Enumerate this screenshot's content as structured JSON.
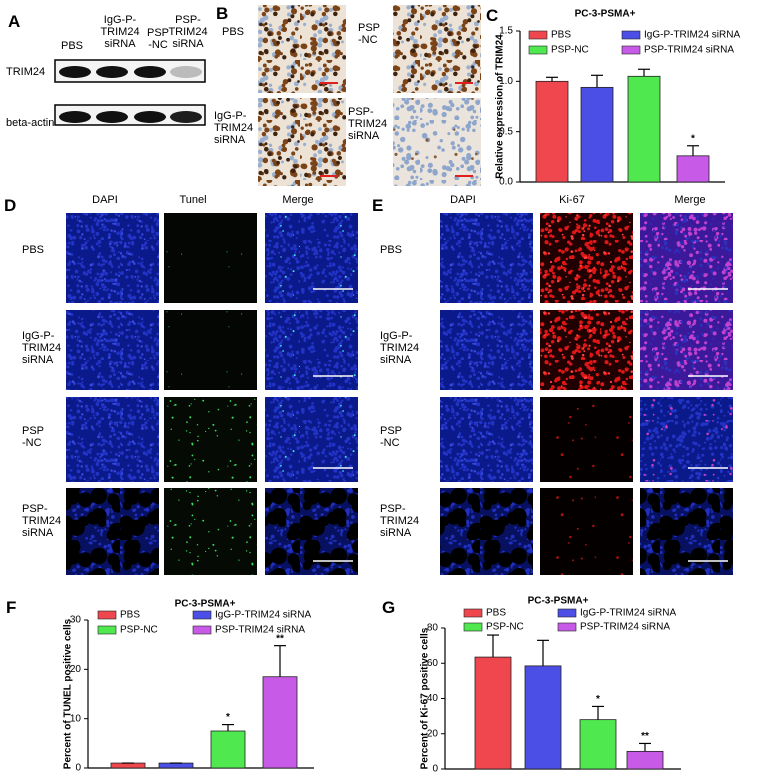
{
  "panel_labels": [
    "A",
    "B",
    "C",
    "D",
    "E",
    "F",
    "G"
  ],
  "blot": {
    "lanes": [
      "PBS",
      "IgG-P-\nTRIM24\nsiRNA",
      "PSP\n-NC",
      "PSP-\nTRIM24\nsiRNA"
    ],
    "rows": [
      "TRIM24",
      "beta-actin"
    ]
  },
  "ihc": {
    "labels": [
      "PBS",
      "PSP\n-NC",
      "IgG-P-\nTRIM24\nsiRNA",
      "PSP-\nTRIM24\nsiRNA"
    ]
  },
  "tunel": {
    "columns": [
      "DAPI",
      "Tunel",
      "Merge"
    ],
    "rows": [
      "PBS",
      "IgG-P-\nTRIM24\nsiRNA",
      "PSP\n-NC",
      "PSP-\nTRIM24\nsiRNA"
    ]
  },
  "ki67": {
    "columns": [
      "DAPI",
      "Ki-67",
      "Merge"
    ],
    "rows": [
      "PBS",
      "IgG-P-\nTRIM24\nsiRNA",
      "PSP\n-NC",
      "PSP-\nTRIM24\nsiRNA"
    ]
  },
  "chart_data": [
    {
      "type": "bar",
      "title": "PC-3-PSMA+",
      "y_label": "Relative expression of TRIM24",
      "ylim": [
        0,
        1.5
      ],
      "yticks": [
        {
          "value": 0,
          "label": "0.0"
        },
        0.5,
        {
          "value": 1,
          "label": "1.0"
        },
        1.5
      ],
      "series": [
        {
          "name": "PBS",
          "color": "#f0464e",
          "values": [
            1.0
          ],
          "errors": [
            0.04
          ]
        },
        {
          "name": "IgG-P-TRIM24 siRNA",
          "color": "#4b4fe6",
          "values": [
            0.94
          ],
          "errors": [
            0.12
          ]
        },
        {
          "name": "PSP-NC",
          "color": "#4fe84f",
          "values": [
            1.05
          ],
          "errors": [
            0.07
          ]
        },
        {
          "name": "PSP-TRIM24 siRNA",
          "color": "#c75be8",
          "values": [
            0.26
          ],
          "errors": [
            0.1
          ],
          "significance": "*"
        }
      ]
    },
    {
      "type": "bar",
      "title": "PC-3-PSMA+",
      "y_label": "Percent of TUNEL positive cells",
      "ylim": [
        0,
        30
      ],
      "yticks": [
        0,
        10,
        20,
        30
      ],
      "series": [
        {
          "name": "PBS",
          "color": "#f0464e",
          "values": [
            1
          ],
          "errors": [
            0
          ]
        },
        {
          "name": "IgG-P-TRIM24 siRNA",
          "color": "#4b4fe6",
          "values": [
            1
          ],
          "errors": [
            0
          ]
        },
        {
          "name": "PSP-NC",
          "color": "#4fe84f",
          "values": [
            7.5
          ],
          "errors": [
            1.3
          ],
          "significance": "*"
        },
        {
          "name": "PSP-TRIM24 siRNA",
          "color": "#c75be8",
          "values": [
            18.5
          ],
          "errors": [
            6.3
          ],
          "significance": "**"
        }
      ]
    },
    {
      "type": "bar",
      "title": "PC-3-PSMA+",
      "y_label": "Percent of Ki-67 positive cells",
      "ylim": [
        0,
        80
      ],
      "yticks": [
        0,
        20,
        40,
        60,
        80
      ],
      "series": [
        {
          "name": "PBS",
          "color": "#f0464e",
          "values": [
            63.5
          ],
          "errors": [
            12.5
          ]
        },
        {
          "name": "IgG-P-TRIM24 siRNA",
          "color": "#4b4fe6",
          "values": [
            58.5
          ],
          "errors": [
            14.5
          ]
        },
        {
          "name": "PSP-NC",
          "color": "#4fe84f",
          "values": [
            28
          ],
          "errors": [
            7.5
          ],
          "significance": "*"
        },
        {
          "name": "PSP-TRIM24 siRNA",
          "color": "#c75be8",
          "values": [
            10
          ],
          "errors": [
            4.5
          ],
          "significance": "**"
        }
      ]
    }
  ]
}
